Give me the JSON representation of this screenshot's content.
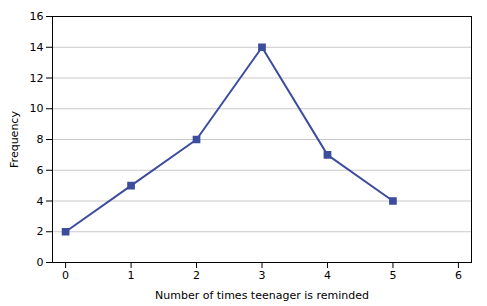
{
  "chart_data": {
    "type": "line",
    "xlabel": "Number of times teenager is reminded",
    "ylabel": "Frequency",
    "x": [
      0,
      1,
      2,
      3,
      4,
      5
    ],
    "values": [
      2,
      5,
      8,
      14,
      7,
      4
    ],
    "color": "#3d4d9e",
    "marker": "square",
    "xlim": [
      -0.2,
      6.2
    ],
    "xticks": [
      0,
      1,
      2,
      3,
      4,
      5,
      6
    ],
    "ylim": [
      0,
      16
    ],
    "yticks": [
      0,
      2,
      4,
      6,
      8,
      10,
      12,
      14,
      16
    ],
    "grid": "y"
  }
}
